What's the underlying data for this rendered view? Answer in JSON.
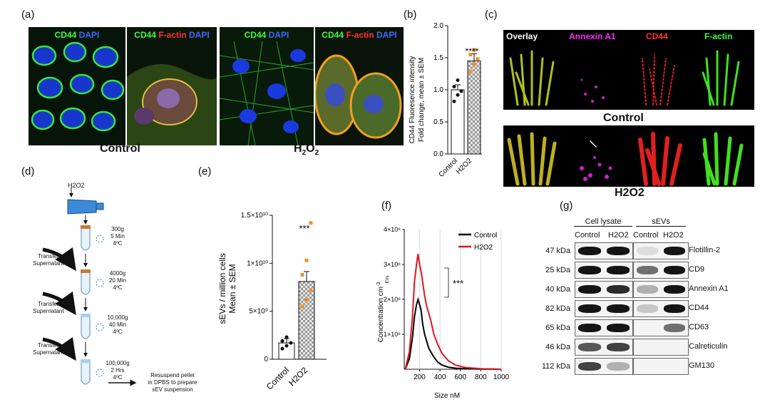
{
  "panels": {
    "a": "(a)",
    "b": "(b)",
    "c": "(c)",
    "d": "(d)",
    "e": "(e)",
    "f": "(f)",
    "g": "(g)"
  },
  "a": {
    "images": [
      {
        "parts": [
          [
            "CD44",
            "g"
          ],
          [
            " ",
            "w"
          ],
          [
            "DAPI",
            "b"
          ]
        ]
      },
      {
        "parts": [
          [
            "CD44",
            "g"
          ],
          [
            " ",
            "w"
          ],
          [
            "F-actin",
            "r"
          ],
          [
            " ",
            "w"
          ],
          [
            "DAPI",
            "b"
          ]
        ]
      },
      {
        "parts": [
          [
            "CD44",
            "g"
          ],
          [
            " ",
            "w"
          ],
          [
            "DAPI",
            "b"
          ]
        ]
      },
      {
        "parts": [
          [
            "CD44",
            "g"
          ],
          [
            " ",
            "w"
          ],
          [
            "F-actin",
            "r"
          ],
          [
            " ",
            "w"
          ],
          [
            "DAPI",
            "b"
          ]
        ]
      }
    ],
    "group_control": "Control",
    "group_h2o2_main": "H",
    "group_h2o2_sub1": "2",
    "group_h2o2_o": "O",
    "group_h2o2_sub2": "2"
  },
  "b": {
    "ylabel_line1": "CD44 Fluoresence intensity",
    "ylabel_line2": "Fold change, mean ± SEM",
    "significance": "****",
    "x_control": "Control",
    "x_h2o2": "H2O2"
  },
  "c": {
    "channels": [
      {
        "label": "Overlay",
        "cls": "w"
      },
      {
        "label": "Annexin A1",
        "cls": "m"
      },
      {
        "label": "CD44",
        "cls": "r"
      },
      {
        "label": "F-actin",
        "cls": "g"
      }
    ],
    "group_control": "Control",
    "group_h2o2": "H2O2"
  },
  "d": {
    "h2o2_label": "H2O2",
    "steps": [
      {
        "speed": "300g",
        "time": "5 Min",
        "temp": "4ºC"
      },
      {
        "speed": "4000g",
        "time": "20 Min",
        "temp": "4ºC"
      },
      {
        "speed": "10,000g",
        "time": "40 Min",
        "temp": "4ºC"
      },
      {
        "speed": "100,000g",
        "time": "2 Hrs",
        "temp": "4ºC"
      }
    ],
    "transfer_line1": "Transfer",
    "transfer_line2": "Supernatant",
    "resuspend_line1": "Resuspend pellet",
    "resuspend_line2": "in DPBS to prepare",
    "resuspend_line3": "sEV suspension"
  },
  "e": {
    "ylabel_line1": "sEVs / million cells",
    "ylabel_line2": "Mean ± SEM",
    "significance": "***",
    "x_control": "Control",
    "x_h2o2": "H2O2"
  },
  "f": {
    "xlabel": "Size nM",
    "ylabel": "Concentration cm",
    "ylabel_sup": "-3",
    "ylabel_sub": "EVs",
    "significance": "***",
    "legend_control": "Control",
    "legend_h2o2": "H2O2"
  },
  "g": {
    "header_lysate": "Cell lysate",
    "header_sevs": "sEVs",
    "col_control_1": "Control",
    "col_h2o2_1": "H2O2",
    "col_control_2": "Control",
    "col_h2o2_2": "H2O2",
    "rows": [
      {
        "kda": "47 kDa",
        "protein": "Flotillin-2"
      },
      {
        "kda": "25 kDa",
        "protein": "CD9"
      },
      {
        "kda": "40 kDa",
        "protein": "Annexin A1"
      },
      {
        "kda": "82 kDa",
        "protein": "CD44"
      },
      {
        "kda": "65 kDa",
        "protein": "CD63"
      },
      {
        "kda": "46 kDa",
        "protein": "Calreticulin"
      },
      {
        "kda": "112 kDa",
        "protein": "GM130"
      }
    ]
  },
  "chart_data": [
    {
      "type": "bar",
      "panel": "b",
      "categories": [
        "Control",
        "H2O2"
      ],
      "values": [
        1.0,
        1.45
      ],
      "points": [
        [
          0.82,
          0.92,
          0.98,
          1.05,
          1.15
        ],
        [
          1.28,
          1.4,
          1.48,
          1.55,
          1.62
        ]
      ],
      "ylabel": "CD44 Fluoresence intensity Fold change, mean ± SEM",
      "ylim": [
        0,
        2.0
      ],
      "yticks": [
        "0.0",
        "0.5",
        "1.0",
        "1.5",
        "2.0"
      ]
    },
    {
      "type": "bar",
      "panel": "e",
      "categories": [
        "Control",
        "H2O2"
      ],
      "values": [
        1700000000.0,
        8100000000.0
      ],
      "points": [
        [
          1100000000.0,
          1400000000.0,
          1700000000.0,
          1900000000.0,
          2300000000.0
        ],
        [
          5500000000.0,
          6200000000.0,
          7200000000.0,
          8800000000.0,
          10300000000.0,
          14200000000.0
        ]
      ],
      "ylabel": "sEVs / million cells Mean ± SEM",
      "ylim": [
        0,
        15000000000.0
      ],
      "yticks": [
        "0",
        "5×10⁹",
        "1×10¹⁰",
        "1.5×10¹⁰"
      ]
    },
    {
      "type": "line",
      "panel": "f",
      "xlabel": "Size nM",
      "ylabel": "Concentration cm-3 EVs",
      "xlim": [
        50,
        1000
      ],
      "ylim": [
        0,
        4000000
      ],
      "xticks": [
        "200",
        "400",
        "600",
        "800",
        "1000"
      ],
      "yticks": [
        "1×10⁶",
        "2×10⁶",
        "3×10⁶",
        "4×10⁶"
      ],
      "series": [
        {
          "name": "Control",
          "color": "#000000",
          "x": [
            60,
            100,
            130,
            150,
            170,
            185,
            200,
            215,
            230,
            250,
            270,
            290,
            310,
            340,
            380,
            420,
            480,
            550,
            650,
            800,
            1000
          ],
          "y": [
            0,
            300000,
            900000,
            1500000,
            1850000,
            2000000,
            1850000,
            1700000,
            1300000,
            1000000,
            800000,
            600000,
            500000,
            350000,
            200000,
            120000,
            60000,
            30000,
            15000,
            5000,
            0
          ]
        },
        {
          "name": "H2O2",
          "color": "#e0141e",
          "x": [
            60,
            100,
            130,
            150,
            170,
            185,
            200,
            215,
            230,
            250,
            270,
            290,
            310,
            340,
            380,
            420,
            480,
            550,
            650,
            800,
            1000
          ],
          "y": [
            0,
            500000,
            1500000,
            2500000,
            3000000,
            3300000,
            3000000,
            2800000,
            2500000,
            2100000,
            1800000,
            1600000,
            1400000,
            1000000,
            700000,
            450000,
            250000,
            120000,
            50000,
            15000,
            0
          ]
        }
      ]
    }
  ]
}
